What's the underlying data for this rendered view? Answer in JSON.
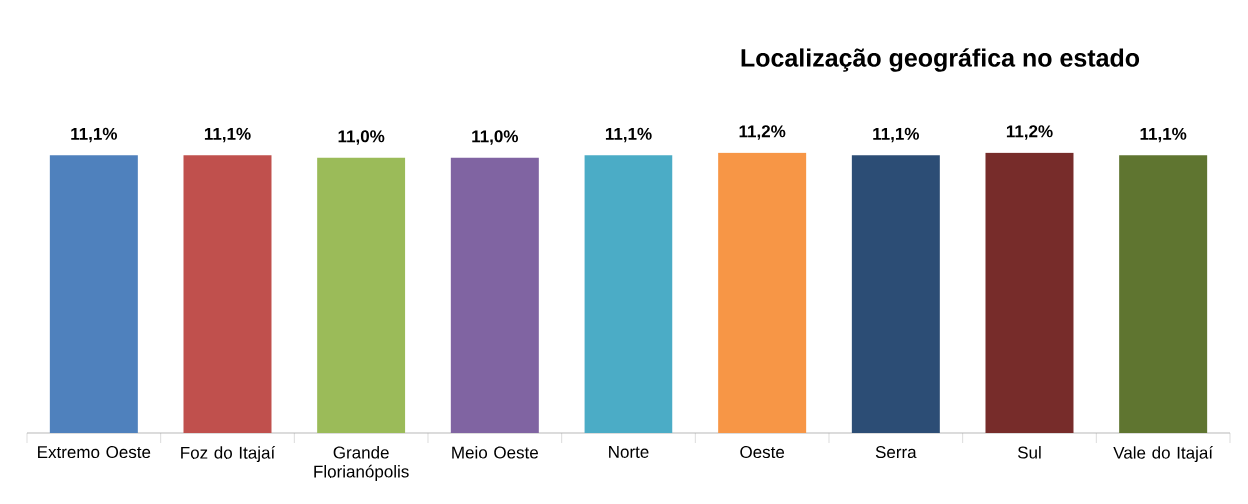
{
  "chart_data": {
    "type": "bar",
    "title": "Localização geográfica no estado",
    "categories": [
      "Extremo Oeste",
      "Foz do Itajaí",
      "Grande Florianópolis",
      "Meio Oeste",
      "Norte",
      "Oeste",
      "Serra",
      "Sul",
      "Vale do Itajaí"
    ],
    "values": [
      11.1,
      11.1,
      11.0,
      11.0,
      11.1,
      11.2,
      11.1,
      11.2,
      11.1
    ],
    "value_labels": [
      "11,1%",
      "11,1%",
      "11,0%",
      "11,0%",
      "11,1%",
      "11,2%",
      "11,1%",
      "11,2%",
      "11,1%"
    ],
    "colors": [
      "#4f81bd",
      "#c0504d",
      "#9bbb59",
      "#8064a2",
      "#4bacc6",
      "#f79646",
      "#2c4d75",
      "#772c2a",
      "#5f7530"
    ]
  }
}
